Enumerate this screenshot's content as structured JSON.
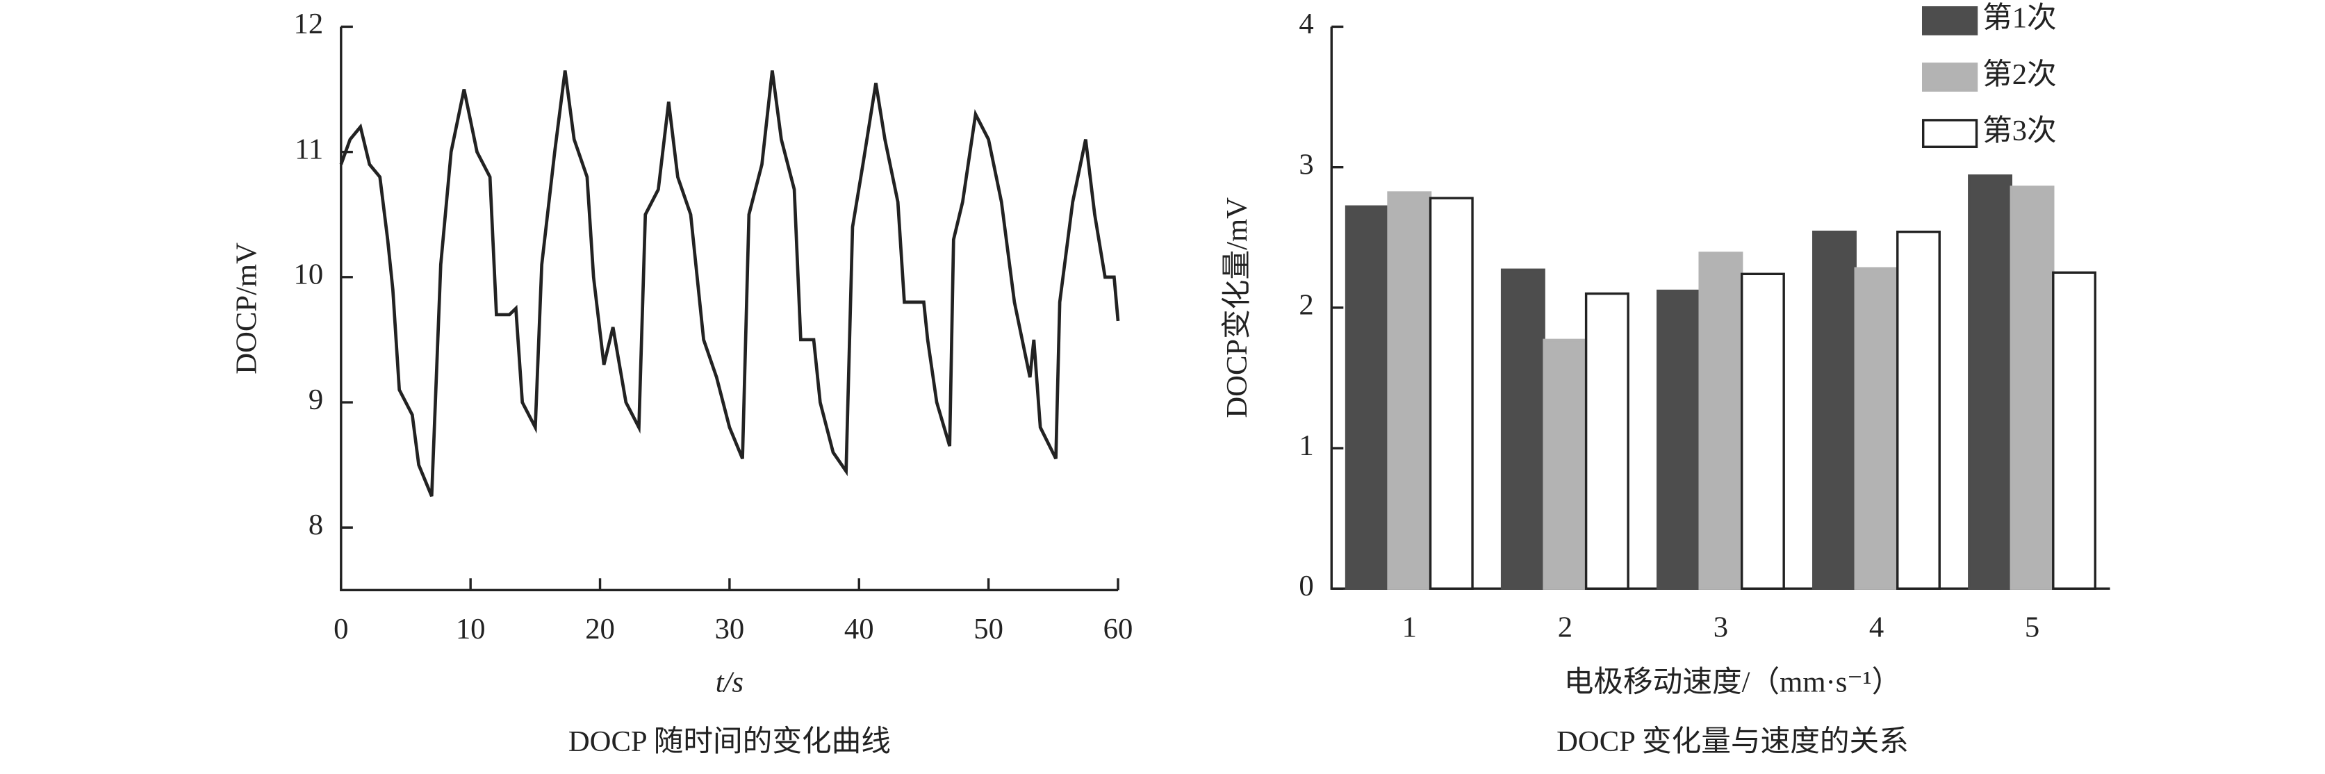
{
  "chart_data": [
    {
      "type": "line",
      "title": "DOCP 随时间的变化曲线",
      "x_label": "t/s",
      "y_label": "DOCP/mV",
      "color": "#222222",
      "xlim": [
        0,
        60
      ],
      "xticks": [
        0,
        10,
        20,
        30,
        40,
        50,
        60
      ],
      "ylim": [
        7.5,
        12
      ],
      "yticks": [
        8,
        9,
        10,
        11,
        12
      ],
      "x": [
        0,
        0.7,
        1.5,
        2.2,
        3,
        3.6,
        4,
        4.5,
        5.5,
        6,
        7,
        7.7,
        8.5,
        9.5,
        10.5,
        11.5,
        12,
        13,
        13.5,
        14,
        15,
        15.5,
        16.5,
        17.3,
        18,
        19,
        19.5,
        20.3,
        21,
        22,
        23,
        23.5,
        24.5,
        25.3,
        26,
        27,
        28,
        29,
        30,
        31,
        31.5,
        32.5,
        33.3,
        34,
        35,
        35.5,
        36.5,
        37,
        38,
        39,
        39.5,
        40.3,
        41.3,
        42,
        43,
        43.5,
        45,
        45.3,
        46,
        47,
        47.3,
        48,
        49,
        50,
        51,
        52,
        53.2,
        53.5,
        54,
        55.2,
        55.5,
        56.5,
        57.5,
        58.2,
        59,
        59.7,
        60
      ],
      "values": [
        10.9,
        11.1,
        11.2,
        10.9,
        10.8,
        10.3,
        9.9,
        9.1,
        8.9,
        8.5,
        8.25,
        10.1,
        11,
        11.5,
        11,
        10.8,
        9.7,
        9.7,
        9.75,
        9,
        8.8,
        10.1,
        11,
        11.65,
        11.1,
        10.8,
        10,
        9.3,
        9.6,
        9,
        8.8,
        10.5,
        10.7,
        11.4,
        10.8,
        10.5,
        9.5,
        9.2,
        8.8,
        8.55,
        10.5,
        10.9,
        11.65,
        11.1,
        10.7,
        9.5,
        9.5,
        9,
        8.6,
        8.45,
        10.4,
        10.9,
        11.55,
        11.1,
        10.6,
        9.8,
        9.8,
        9.5,
        9,
        8.65,
        10.3,
        10.6,
        11.3,
        11.1,
        10.6,
        9.8,
        9.2,
        9.5,
        8.8,
        8.55,
        9.8,
        10.6,
        11.1,
        10.5,
        10,
        10,
        9.65
      ]
    },
    {
      "type": "bar",
      "title": "DOCP 变化量与速度的关系",
      "x_label": "电极移动速度/（mm·s⁻¹）",
      "y_label": "DOCP变化量/mV",
      "categories": [
        "1",
        "2",
        "3",
        "4",
        "5"
      ],
      "ylim": [
        0,
        4
      ],
      "yticks": [
        0,
        1,
        2,
        3,
        4
      ],
      "legend": "upper right",
      "series": [
        {
          "name": "第1次",
          "color": "#4d4d4d",
          "values": [
            2.72,
            2.27,
            2.12,
            2.54,
            2.94
          ]
        },
        {
          "name": "第2次",
          "color": "#b3b3b3",
          "values": [
            2.82,
            1.77,
            2.39,
            2.28,
            2.86
          ]
        },
        {
          "name": "第3次",
          "color": "#ffffff",
          "values": [
            2.78,
            2.1,
            2.24,
            2.54,
            2.25
          ]
        }
      ]
    }
  ]
}
